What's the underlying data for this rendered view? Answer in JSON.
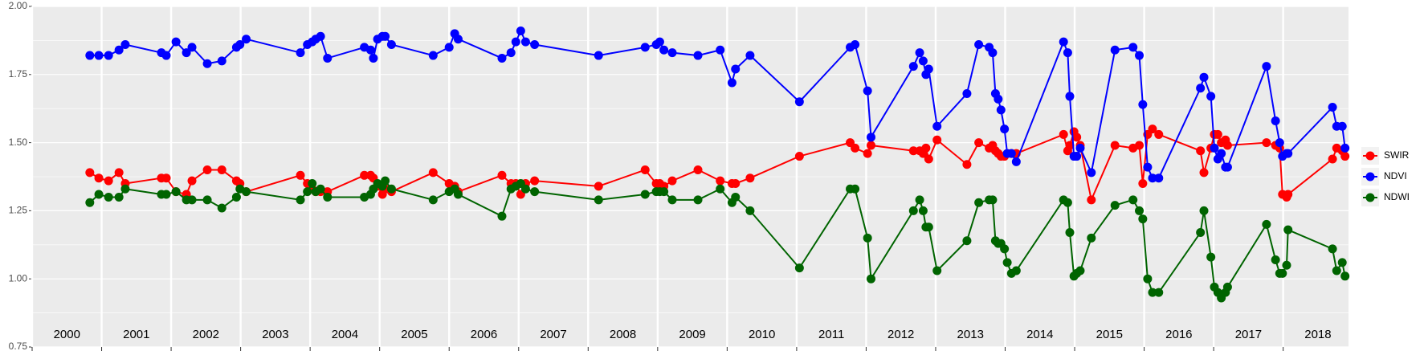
{
  "chart_data": {
    "type": "line",
    "x": [
      2000.83,
      2000.96,
      2001.1,
      2001.25,
      2001.34,
      2001.86,
      2001.93,
      2002.07,
      2002.22,
      2002.3,
      2002.52,
      2002.73,
      2002.94,
      2002.99,
      2003.08,
      2003.86,
      2003.96,
      2004.03,
      2004.08,
      2004.15,
      2004.25,
      2004.78,
      2004.87,
      2004.91,
      2004.97,
      2005.04,
      2005.08,
      2005.17,
      2005.77,
      2006.0,
      2006.08,
      2006.13,
      2006.76,
      2006.89,
      2006.96,
      2007.03,
      2007.1,
      2007.23,
      2008.15,
      2008.82,
      2008.98,
      2009.03,
      2009.09,
      2009.21,
      2009.58,
      2009.9,
      2010.07,
      2010.12,
      2010.33,
      2011.04,
      2011.77,
      2011.84,
      2012.02,
      2012.07,
      2012.68,
      2012.77,
      2012.82,
      2012.86,
      2012.9,
      2013.02,
      2013.45,
      2013.62,
      2013.77,
      2013.82,
      2013.86,
      2013.9,
      2013.94,
      2013.99,
      2014.03,
      2014.09,
      2014.16,
      2014.84,
      2014.9,
      2014.93,
      2014.99,
      2015.03,
      2015.08,
      2015.24,
      2015.58,
      2015.84,
      2015.93,
      2015.98,
      2016.05,
      2016.12,
      2016.21,
      2016.81,
      2016.86,
      2016.96,
      2017.01,
      2017.06,
      2017.11,
      2017.17,
      2017.2,
      2017.76,
      2017.89,
      2017.95,
      2017.99,
      2018.05,
      2018.07,
      2018.71,
      2018.77,
      2018.85,
      2018.89
    ],
    "series": [
      {
        "name": "SWIR",
        "color": "#ff0000",
        "values": [
          1.39,
          1.37,
          1.36,
          1.39,
          1.35,
          1.37,
          1.37,
          1.32,
          1.31,
          1.36,
          1.4,
          1.4,
          1.36,
          1.35,
          1.32,
          1.38,
          1.35,
          1.33,
          1.32,
          1.32,
          1.32,
          1.38,
          1.38,
          1.37,
          1.34,
          1.31,
          1.33,
          1.32,
          1.39,
          1.35,
          1.34,
          1.32,
          1.38,
          1.35,
          1.35,
          1.31,
          1.35,
          1.36,
          1.34,
          1.4,
          1.35,
          1.35,
          1.34,
          1.36,
          1.4,
          1.36,
          1.35,
          1.35,
          1.37,
          1.45,
          1.5,
          1.48,
          1.46,
          1.49,
          1.47,
          1.47,
          1.46,
          1.48,
          1.44,
          1.51,
          1.42,
          1.5,
          1.48,
          1.49,
          1.47,
          1.46,
          1.45,
          1.45,
          1.46,
          1.46,
          1.46,
          1.53,
          1.47,
          1.49,
          1.54,
          1.52,
          1.49,
          1.29,
          1.49,
          1.48,
          1.49,
          1.35,
          1.53,
          1.55,
          1.53,
          1.47,
          1.39,
          1.48,
          1.53,
          1.53,
          1.5,
          1.51,
          1.49,
          1.5,
          1.49,
          1.48,
          1.31,
          1.3,
          1.31,
          1.44,
          1.48,
          1.47,
          1.45
        ]
      },
      {
        "name": "NDVI",
        "color": "#0000ff",
        "values": [
          1.82,
          1.82,
          1.82,
          1.84,
          1.86,
          1.83,
          1.82,
          1.87,
          1.83,
          1.85,
          1.79,
          1.8,
          1.85,
          1.86,
          1.88,
          1.83,
          1.86,
          1.87,
          1.88,
          1.89,
          1.81,
          1.85,
          1.84,
          1.81,
          1.88,
          1.89,
          1.89,
          1.86,
          1.82,
          1.85,
          1.9,
          1.88,
          1.81,
          1.83,
          1.87,
          1.91,
          1.87,
          1.86,
          1.82,
          1.85,
          1.86,
          1.87,
          1.84,
          1.83,
          1.82,
          1.84,
          1.72,
          1.77,
          1.82,
          1.65,
          1.85,
          1.86,
          1.69,
          1.52,
          1.78,
          1.83,
          1.8,
          1.75,
          1.77,
          1.56,
          1.68,
          1.86,
          1.85,
          1.83,
          1.68,
          1.66,
          1.62,
          1.55,
          1.46,
          1.46,
          1.43,
          1.87,
          1.83,
          1.67,
          1.45,
          1.45,
          1.48,
          1.39,
          1.84,
          1.85,
          1.82,
          1.64,
          1.41,
          1.37,
          1.37,
          1.7,
          1.74,
          1.67,
          1.48,
          1.44,
          1.46,
          1.41,
          1.41,
          1.78,
          1.58,
          1.5,
          1.45,
          1.46,
          1.46,
          1.63,
          1.56,
          1.56,
          1.48
        ]
      },
      {
        "name": "NDWI",
        "color": "#006400",
        "values": [
          1.28,
          1.31,
          1.3,
          1.3,
          1.33,
          1.31,
          1.31,
          1.32,
          1.29,
          1.29,
          1.29,
          1.26,
          1.3,
          1.33,
          1.32,
          1.29,
          1.32,
          1.35,
          1.32,
          1.33,
          1.3,
          1.3,
          1.31,
          1.33,
          1.35,
          1.34,
          1.36,
          1.33,
          1.29,
          1.32,
          1.33,
          1.31,
          1.23,
          1.33,
          1.34,
          1.35,
          1.33,
          1.32,
          1.29,
          1.31,
          1.32,
          1.32,
          1.32,
          1.29,
          1.29,
          1.33,
          1.28,
          1.3,
          1.25,
          1.04,
          1.33,
          1.33,
          1.15,
          1.0,
          1.25,
          1.29,
          1.25,
          1.19,
          1.19,
          1.03,
          1.14,
          1.28,
          1.29,
          1.29,
          1.14,
          1.13,
          1.13,
          1.11,
          1.06,
          1.02,
          1.03,
          1.29,
          1.28,
          1.17,
          1.01,
          1.02,
          1.03,
          1.15,
          1.27,
          1.29,
          1.25,
          1.22,
          1.0,
          0.95,
          0.95,
          1.17,
          1.25,
          1.08,
          0.97,
          0.95,
          0.93,
          0.95,
          0.97,
          1.2,
          1.07,
          1.02,
          1.02,
          1.05,
          1.18,
          1.11,
          1.03,
          1.06,
          1.01
        ]
      }
    ],
    "xlim": [
      2000,
      2018.94
    ],
    "xticks": [
      2000,
      2001,
      2002,
      2003,
      2004,
      2005,
      2006,
      2007,
      2008,
      2009,
      2010,
      2011,
      2012,
      2013,
      2014,
      2015,
      2016,
      2017,
      2018
    ],
    "ylim": [
      0.75,
      2.0
    ],
    "yticks": [
      0.75,
      {
        "value": 1.0,
        "label": "1.00"
      },
      1.25,
      {
        "value": 1.5,
        "label": "1.50"
      },
      1.75,
      {
        "value": 2.0,
        "label": "2.00"
      }
    ],
    "grid": true,
    "legend": "right"
  }
}
